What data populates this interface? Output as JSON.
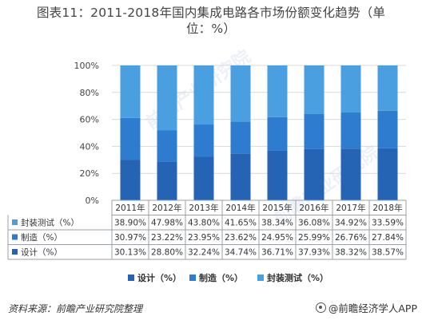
{
  "title_line1": "图表11：2011-2018年国内集成电路各市场份额变化趋势（单",
  "title_line2": "位：%）",
  "source": "资料来源：前瞻产业研究院整理",
  "brand": "@前瞻经济学人APP",
  "watermark": "前瞻产业研究院",
  "colors": {
    "packaging": "#4a9fe0",
    "manufacturing": "#2e7ccf",
    "design": "#2563b5",
    "grid": "#d9d9d9",
    "table_border": "#9aa0a6"
  },
  "chart_data": {
    "type": "bar",
    "stacked": true,
    "categories": [
      "2011年",
      "2012年",
      "2013年",
      "2014年",
      "2015年",
      "2016年",
      "2017年",
      "2018年"
    ],
    "series": [
      {
        "name": "封装测试（%）",
        "key": "packaging",
        "values": [
          "38.90%",
          "47.98%",
          "43.80%",
          "41.65%",
          "38.34%",
          "36.08%",
          "34.92%",
          "33.59%"
        ]
      },
      {
        "name": "制造（%）",
        "key": "manufacturing",
        "values": [
          "30.97%",
          "23.22%",
          "23.95%",
          "23.62%",
          "24.95%",
          "25.99%",
          "26.76%",
          "27.84%"
        ]
      },
      {
        "name": "设计（%）",
        "key": "design",
        "values": [
          "30.13%",
          "28.80%",
          "32.24%",
          "34.74%",
          "36.71%",
          "37.93%",
          "38.32%",
          "38.57%"
        ]
      }
    ],
    "stack_order": [
      "design",
      "manufacturing",
      "packaging"
    ],
    "yticks": [
      "0%",
      "20%",
      "40%",
      "60%",
      "80%",
      "100%"
    ],
    "ylim": [
      0,
      100
    ],
    "legend": [
      "设计（%）",
      "制造（%）",
      "封装测试（%）"
    ],
    "legend_position": "bottom"
  }
}
